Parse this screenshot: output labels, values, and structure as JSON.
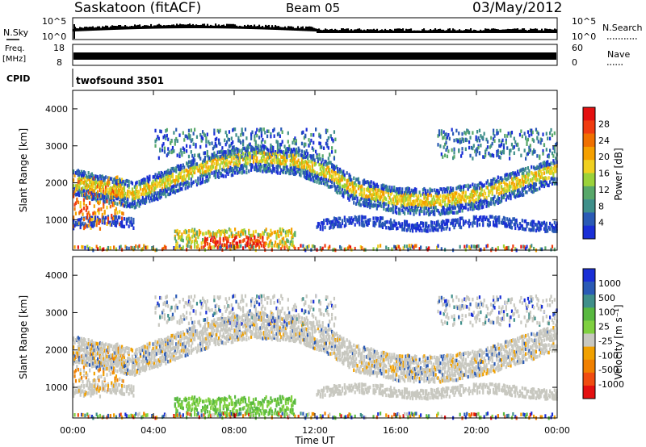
{
  "header": {
    "station": "Saskatoon (fitACF)",
    "beam": "Beam 05",
    "date": "03/May/2012"
  },
  "top_panels": {
    "nsky_label": "N.Sky",
    "nsky_ticks": [
      "10^5",
      "10^0"
    ],
    "nsearch_label": "N.Search",
    "nsearch_ticks": [
      "10^5",
      "10^0"
    ],
    "freq_label_1": "Freq.",
    "freq_label_2": "[MHz]",
    "freq_ticks": [
      "18",
      "8"
    ],
    "nave_label": "Nave",
    "nave_ticks": [
      "60",
      "0"
    ],
    "cpid_label": "CPID",
    "cpid_value": "twofsound 3501"
  },
  "colors": {
    "power_scale": [
      "#1a2fd6",
      "#2a5ab5",
      "#3f8f8a",
      "#58a86a",
      "#9bd23a",
      "#f0d020",
      "#f5a000",
      "#f07000",
      "#f03c10",
      "#e41010"
    ],
    "velocity_scale": [
      "#1a2fd6",
      "#2a5ab5",
      "#3f8f8a",
      "#58b840",
      "#7fd040",
      "#c8c8c0",
      "#f0a000",
      "#f08000",
      "#f04c10",
      "#e41010"
    ],
    "velocity_grey": "#c8c8c0"
  },
  "chart_data": [
    {
      "type": "heatmap",
      "panel": "power",
      "ylabel": "Slant Range [km]",
      "colorbar_label": "Power [dB]",
      "colorbar_ticks": [
        "28",
        "24",
        "20",
        "16",
        "12",
        "8",
        "4"
      ],
      "x_ticks": [
        "00:00",
        "04:00",
        "08:00",
        "12:00",
        "16:00",
        "20:00",
        "00:00"
      ],
      "y_ticks": [
        "4000",
        "3000",
        "2000",
        "1000"
      ],
      "ylim": [
        180,
        4500
      ],
      "x_range_hours": [
        0,
        24
      ],
      "features": [
        {
          "desc": "main arc band",
          "points": [
            [
              0,
              2100
            ],
            [
              1.5,
              1900
            ],
            [
              3,
              1750
            ],
            [
              5,
              2150
            ],
            [
              7,
              2550
            ],
            [
              9,
              2750
            ],
            [
              11,
              2650
            ],
            [
              12.5,
              2350
            ],
            [
              14,
              1850
            ],
            [
              16,
              1600
            ],
            [
              18,
              1550
            ],
            [
              20,
              1700
            ],
            [
              22,
              2050
            ],
            [
              24,
              2400
            ]
          ],
          "power": 16
        },
        {
          "desc": "upper echoes",
          "points": [
            [
              5,
              2900
            ],
            [
              7,
              3100
            ],
            [
              9,
              3300
            ],
            [
              11,
              3150
            ],
            [
              13,
              2800
            ]
          ],
          "power": 10
        },
        {
          "desc": "near range strong",
          "points": [
            [
              5.5,
              500
            ],
            [
              7,
              420
            ],
            [
              8.5,
              380
            ],
            [
              10,
              450
            ]
          ],
          "power": 26
        }
      ]
    },
    {
      "type": "heatmap",
      "panel": "velocity",
      "ylabel": "Slant Range [km]",
      "xlabel": "Time UT",
      "colorbar_label": "Velocity [m s⁻¹]",
      "colorbar_ticks": [
        "1000",
        "500",
        "100",
        "25",
        "-25",
        "-100",
        "-500",
        "-1000"
      ],
      "x_ticks": [
        "00:00",
        "04:00",
        "08:00",
        "12:00",
        "16:00",
        "20:00",
        "00:00"
      ],
      "y_ticks": [
        "4000",
        "3000",
        "2000",
        "1000"
      ],
      "ylim": [
        180,
        4500
      ],
      "x_range_hours": [
        0,
        24
      ]
    }
  ]
}
